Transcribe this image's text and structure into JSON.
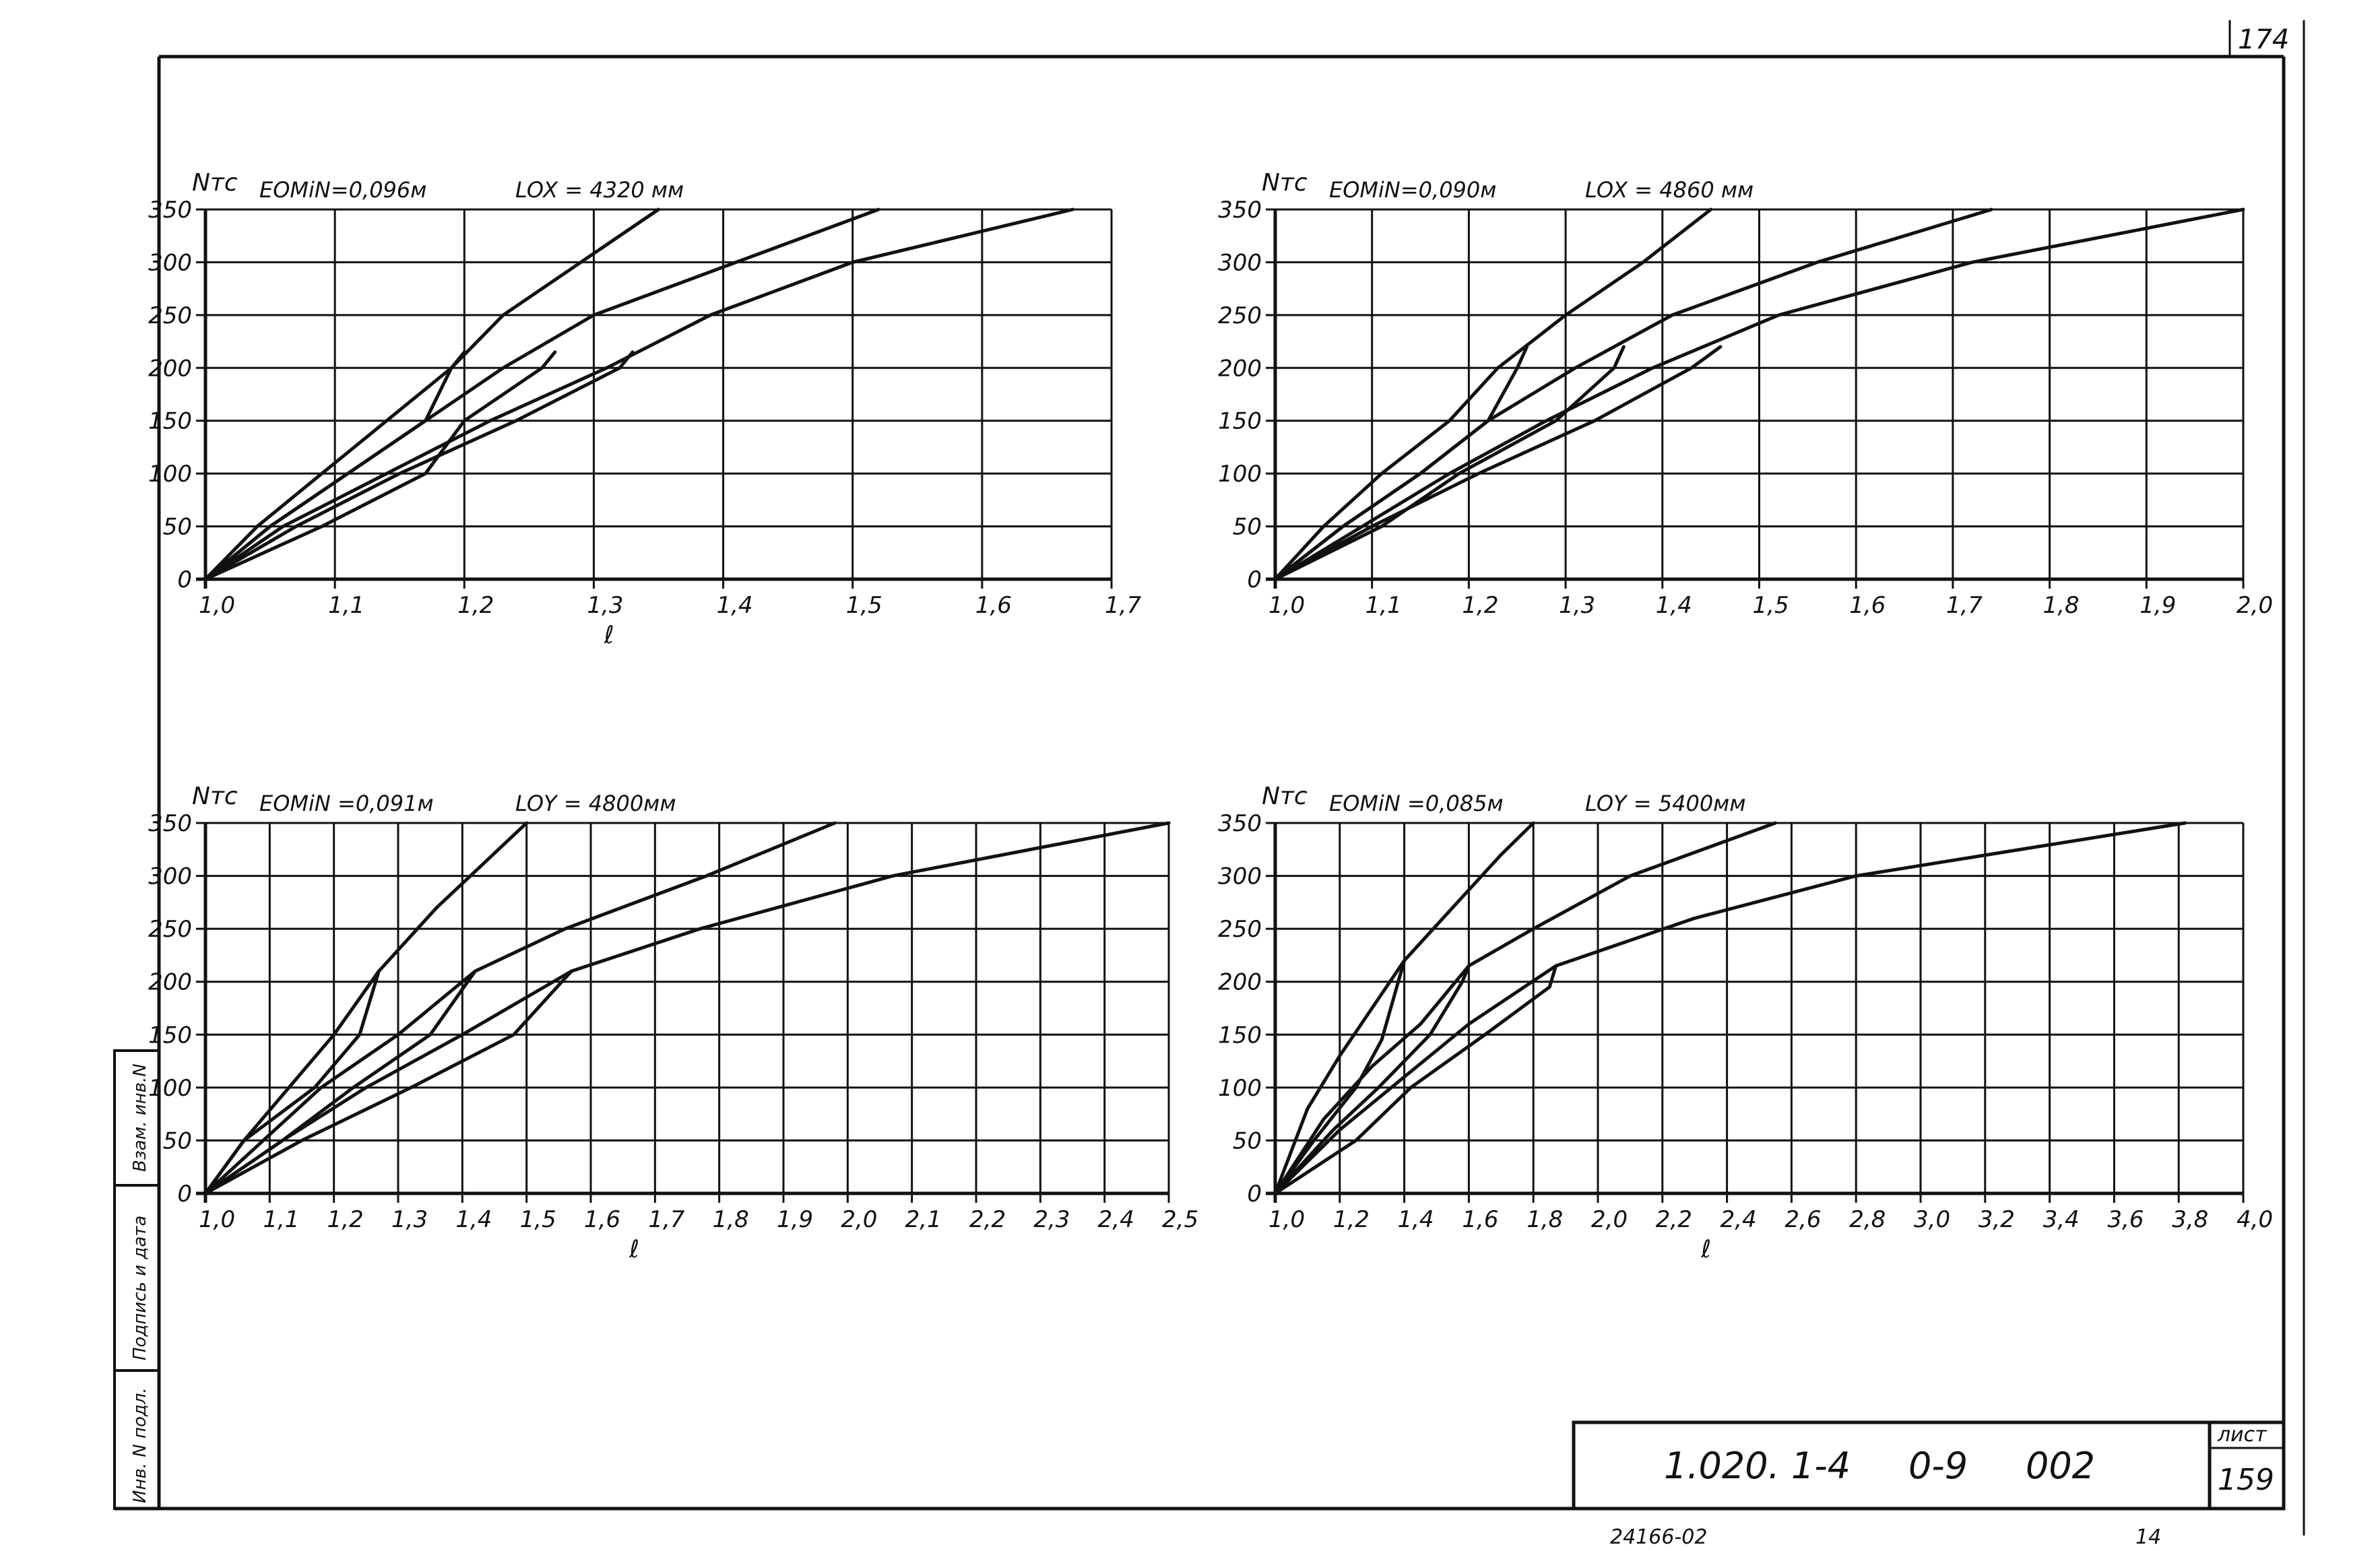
{
  "sheet": {
    "corner_number": "174",
    "code": "1.020. 1-4     0-9     002",
    "sheet_label": "лист",
    "sheet_number": "159",
    "bottom_note": "24166-02",
    "bottom_mark": "14",
    "side_labels": [
      "Взам. инв.N",
      "Подпись и дата",
      "Инв. N подл."
    ]
  },
  "chart_data": [
    {
      "type": "line",
      "ylabel": "Nтс",
      "xlabel": "ℓ",
      "emin": "EOMiN=0,096м",
      "length": "LOX = 4320 мм",
      "xticks": [
        "1,0",
        "1,1",
        "1,2",
        "1,3",
        "1,4",
        "1,5",
        "1,6",
        "1,7"
      ],
      "yticks": [
        "0",
        "50",
        "100",
        "150",
        "200",
        "250",
        "300",
        "350"
      ],
      "xlim": [
        1.0,
        1.7
      ],
      "ylim": [
        0,
        350
      ],
      "grid": true,
      "series": [
        {
          "points": [
            [
              1.0,
              0
            ],
            [
              1.04,
              50
            ],
            [
              1.09,
              100
            ],
            [
              1.14,
              150
            ],
            [
              1.19,
              200
            ],
            [
              1.23,
              250
            ],
            [
              1.29,
              300
            ],
            [
              1.35,
              350
            ]
          ]
        },
        {
          "points": [
            [
              1.0,
              0
            ],
            [
              1.05,
              50
            ],
            [
              1.11,
              100
            ],
            [
              1.17,
              150
            ],
            [
              1.23,
              200
            ],
            [
              1.3,
              250
            ],
            [
              1.41,
              300
            ],
            [
              1.52,
              350
            ]
          ]
        },
        {
          "points": [
            [
              1.0,
              0
            ],
            [
              1.06,
              50
            ],
            [
              1.14,
              100
            ],
            [
              1.22,
              150
            ],
            [
              1.31,
              200
            ],
            [
              1.39,
              250
            ],
            [
              1.5,
              300
            ],
            [
              1.67,
              350
            ]
          ]
        },
        {
          "points": [
            [
              1.0,
              0
            ],
            [
              1.07,
              50
            ],
            [
              1.15,
              100
            ],
            [
              1.24,
              150
            ],
            [
              1.32,
              200
            ],
            [
              1.33,
              215
            ]
          ]
        },
        {
          "points": [
            [
              1.0,
              0
            ],
            [
              1.09,
              50
            ],
            [
              1.17,
              100
            ],
            [
              1.2,
              150
            ],
            [
              1.26,
              200
            ],
            [
              1.27,
              215
            ]
          ]
        },
        {
          "points": [
            [
              1.0,
              0
            ],
            [
              1.05,
              50
            ],
            [
              1.11,
              100
            ],
            [
              1.17,
              150
            ],
            [
              1.19,
              200
            ],
            [
              1.2,
              215
            ]
          ]
        }
      ]
    },
    {
      "type": "line",
      "ylabel": "Nтс",
      "xlabel": "",
      "emin": "EOMiN=0,090м",
      "length": "LOX = 4860 мм",
      "xticks": [
        "1,0",
        "1,1",
        "1,2",
        "1,3",
        "1,4",
        "1,5",
        "1,6",
        "1,7",
        "1,8",
        "1,9",
        "2,0"
      ],
      "yticks": [
        "0",
        "50",
        "100",
        "150",
        "200",
        "250",
        "300",
        "350"
      ],
      "xlim": [
        1.0,
        2.0
      ],
      "ylim": [
        0,
        350
      ],
      "grid": true,
      "series": [
        {
          "points": [
            [
              1.0,
              0
            ],
            [
              1.05,
              50
            ],
            [
              1.11,
              100
            ],
            [
              1.18,
              150
            ],
            [
              1.23,
              200
            ],
            [
              1.3,
              250
            ],
            [
              1.38,
              300
            ],
            [
              1.45,
              350
            ]
          ]
        },
        {
          "points": [
            [
              1.0,
              0
            ],
            [
              1.07,
              50
            ],
            [
              1.15,
              100
            ],
            [
              1.22,
              150
            ],
            [
              1.31,
              200
            ],
            [
              1.41,
              250
            ],
            [
              1.56,
              300
            ],
            [
              1.74,
              350
            ]
          ]
        },
        {
          "points": [
            [
              1.0,
              0
            ],
            [
              1.09,
              50
            ],
            [
              1.18,
              100
            ],
            [
              1.28,
              150
            ],
            [
              1.39,
              200
            ],
            [
              1.52,
              250
            ],
            [
              1.72,
              300
            ],
            [
              2.0,
              350
            ]
          ]
        },
        {
          "points": [
            [
              1.0,
              0
            ],
            [
              1.1,
              50
            ],
            [
              1.21,
              100
            ],
            [
              1.33,
              150
            ],
            [
              1.43,
              200
            ],
            [
              1.46,
              220
            ]
          ]
        },
        {
          "points": [
            [
              1.0,
              0
            ],
            [
              1.11,
              50
            ],
            [
              1.19,
              100
            ],
            [
              1.29,
              150
            ],
            [
              1.35,
              200
            ],
            [
              1.36,
              220
            ]
          ]
        },
        {
          "points": [
            [
              1.0,
              0
            ],
            [
              1.07,
              50
            ],
            [
              1.15,
              100
            ],
            [
              1.22,
              150
            ],
            [
              1.25,
              200
            ],
            [
              1.26,
              220
            ]
          ]
        }
      ]
    },
    {
      "type": "line",
      "ylabel": "Nтс",
      "xlabel": "ℓ",
      "emin": "EOMiN =0,091м",
      "length": "LOY = 4800мм",
      "xticks": [
        "1,0",
        "1,1",
        "1,2",
        "1,3",
        "1,4",
        "1,5",
        "1,6",
        "1,7",
        "1,8",
        "1,9",
        "2,0",
        "2,1",
        "2,2",
        "2,3",
        "2,4",
        "2,5"
      ],
      "yticks": [
        "0",
        "50",
        "100",
        "150",
        "200",
        "250",
        "300",
        "350"
      ],
      "xlim": [
        1.0,
        2.5
      ],
      "ylim": [
        0,
        350
      ],
      "grid": true,
      "series": [
        {
          "points": [
            [
              1.0,
              0
            ],
            [
              1.06,
              50
            ],
            [
              1.13,
              100
            ],
            [
              1.2,
              150
            ],
            [
              1.27,
              210
            ],
            [
              1.36,
              270
            ],
            [
              1.43,
              310
            ],
            [
              1.5,
              350
            ]
          ]
        },
        {
          "points": [
            [
              1.0,
              0
            ],
            [
              1.09,
              50
            ],
            [
              1.18,
              100
            ],
            [
              1.3,
              150
            ],
            [
              1.42,
              210
            ],
            [
              1.56,
              250
            ],
            [
              1.78,
              300
            ],
            [
              1.98,
              350
            ]
          ]
        },
        {
          "points": [
            [
              1.0,
              0
            ],
            [
              1.12,
              50
            ],
            [
              1.25,
              100
            ],
            [
              1.4,
              150
            ],
            [
              1.57,
              210
            ],
            [
              1.77,
              250
            ],
            [
              2.07,
              300
            ],
            [
              2.5,
              350
            ]
          ]
        },
        {
          "points": [
            [
              1.0,
              0
            ],
            [
              1.15,
              50
            ],
            [
              1.32,
              100
            ],
            [
              1.48,
              150
            ],
            [
              1.57,
              210
            ]
          ]
        },
        {
          "points": [
            [
              1.0,
              0
            ],
            [
              1.12,
              50
            ],
            [
              1.23,
              100
            ],
            [
              1.35,
              150
            ],
            [
              1.42,
              210
            ]
          ]
        },
        {
          "points": [
            [
              1.0,
              0
            ],
            [
              1.06,
              50
            ],
            [
              1.17,
              100
            ],
            [
              1.24,
              150
            ],
            [
              1.27,
              210
            ]
          ]
        }
      ]
    },
    {
      "type": "line",
      "ylabel": "Nтс",
      "xlabel": "ℓ",
      "emin": "EOMiN =0,085м",
      "length": "LOY = 5400мм",
      "xticks": [
        "1,0",
        "1,2",
        "1,4",
        "1,6",
        "1,8",
        "2,0",
        "2,2",
        "2,4",
        "2,6",
        "2,8",
        "3,0",
        "3,2",
        "3,4",
        "3,6",
        "3,8",
        "4,0"
      ],
      "yticks": [
        "0",
        "50",
        "100",
        "150",
        "200",
        "250",
        "300",
        "350"
      ],
      "xlim": [
        1.0,
        4.0
      ],
      "ylim": [
        0,
        350
      ],
      "grid": true,
      "series": [
        {
          "points": [
            [
              1.0,
              0
            ],
            [
              1.1,
              80
            ],
            [
              1.2,
              130
            ],
            [
              1.3,
              175
            ],
            [
              1.4,
              220
            ],
            [
              1.55,
              270
            ],
            [
              1.7,
              320
            ],
            [
              1.8,
              350
            ]
          ]
        },
        {
          "points": [
            [
              1.0,
              0
            ],
            [
              1.15,
              70
            ],
            [
              1.3,
              120
            ],
            [
              1.45,
              160
            ],
            [
              1.6,
              215
            ],
            [
              1.8,
              250
            ],
            [
              2.1,
              300
            ],
            [
              2.55,
              350
            ]
          ]
        },
        {
          "points": [
            [
              1.0,
              0
            ],
            [
              1.2,
              60
            ],
            [
              1.4,
              110
            ],
            [
              1.6,
              160
            ],
            [
              1.87,
              215
            ],
            [
              2.3,
              260
            ],
            [
              2.8,
              300
            ],
            [
              3.82,
              350
            ]
          ]
        },
        {
          "points": [
            [
              1.0,
              0
            ],
            [
              1.25,
              50
            ],
            [
              1.42,
              100
            ],
            [
              1.65,
              150
            ],
            [
              1.85,
              195
            ],
            [
              1.87,
              215
            ]
          ]
        },
        {
          "points": [
            [
              1.0,
              0
            ],
            [
              1.18,
              60
            ],
            [
              1.32,
              100
            ],
            [
              1.48,
              150
            ],
            [
              1.58,
              200
            ],
            [
              1.6,
              215
            ]
          ]
        },
        {
          "points": [
            [
              1.0,
              0
            ],
            [
              1.12,
              50
            ],
            [
              1.25,
              100
            ],
            [
              1.33,
              145
            ],
            [
              1.4,
              220
            ]
          ]
        }
      ]
    }
  ]
}
